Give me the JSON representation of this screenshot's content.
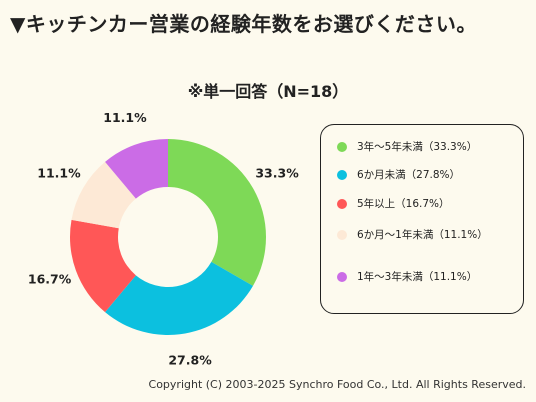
{
  "header": {
    "title": "▼キッチンカー営業の経験年数をお選びください。"
  },
  "footer": {
    "copyright": "Copyright (C) 2003-2025  Synchro Food Co., Ltd. All Rights Reserved."
  },
  "chart_data": {
    "type": "pie",
    "title": "※単一回答（N=18）",
    "categories": [
      "3年〜5年未満",
      "6か月未満",
      "5年以上",
      "6か月〜1年未満",
      "1年〜3年未満"
    ],
    "values": [
      33.3,
      27.8,
      16.7,
      11.1,
      11.1
    ],
    "data_labels": [
      "33.3%",
      "27.8%",
      "16.7%",
      "11.1%",
      "11.1%"
    ],
    "legend_labels": [
      "3年〜5年未満（33.3%）",
      "6か月未満（27.8%）",
      "5年以上（16.7%）",
      "6か月〜1年未満（11.1%）",
      "1年〜3年未満（11.1%）"
    ],
    "colors": [
      "#7ed957",
      "#0cc0df",
      "#ff5757",
      "#fde9d6",
      "#cb6ce6"
    ],
    "legend_position": "right"
  }
}
